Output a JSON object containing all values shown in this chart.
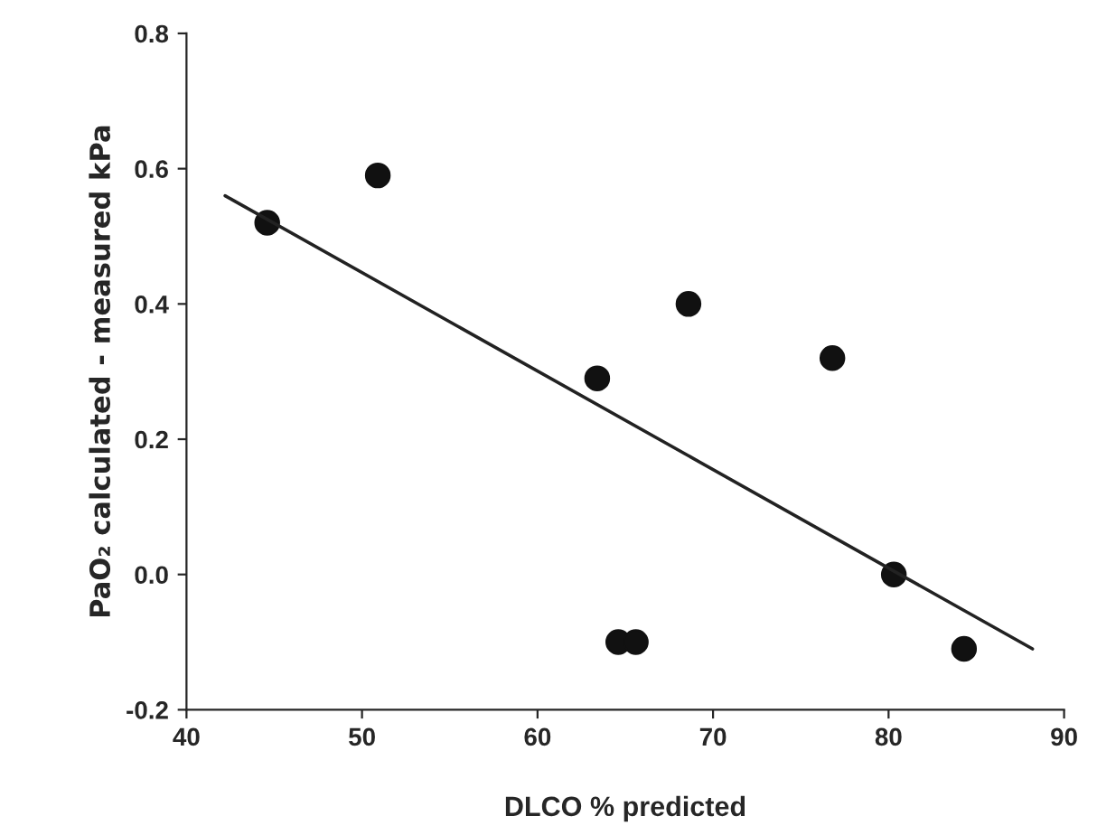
{
  "chart_data": {
    "type": "scatter",
    "xlabel": "DLCO % predicted",
    "ylabel": "PaO₂ calculated - measured kPa",
    "xlim": [
      40,
      90
    ],
    "xticks": [
      40,
      50,
      60,
      70,
      80,
      90
    ],
    "ylim": [
      -0.2,
      0.8
    ],
    "yticks": [
      {
        "value": -0.2,
        "label": "-0.2"
      },
      {
        "value": 0.0,
        "label": "0.0"
      },
      {
        "value": 0.2,
        "label": "0.2"
      },
      {
        "value": 0.4,
        "label": "0.4"
      },
      {
        "value": 0.6,
        "label": "0.6"
      },
      {
        "value": 0.8,
        "label": "0.8"
      }
    ],
    "grid": false,
    "legend": false,
    "marker": "circle",
    "series": [
      {
        "color": "#111111",
        "x": [
          44.6,
          50.9,
          63.4,
          68.6,
          76.8,
          80.3,
          64.6,
          65.6,
          84.3
        ],
        "values": [
          0.52,
          0.59,
          0.29,
          0.4,
          0.32,
          0.0,
          -0.1,
          -0.1,
          -0.11
        ]
      },
      {
        "type": "line",
        "color": "#222222",
        "x": [
          42.2,
          88.2
        ],
        "values": [
          0.56,
          -0.11
        ],
        "marker": "none",
        "line_style": "solid"
      }
    ]
  }
}
